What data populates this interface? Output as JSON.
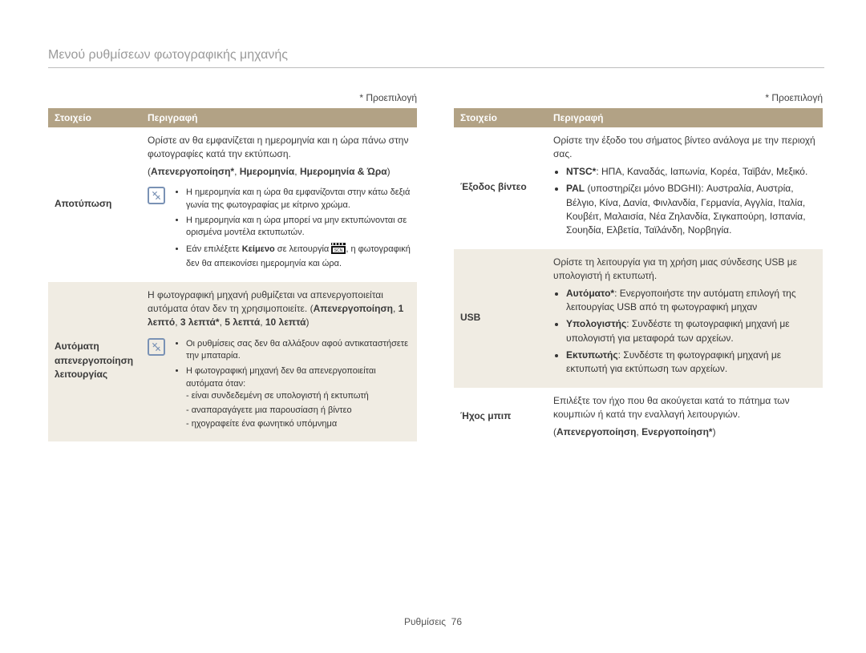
{
  "page_title": "Μενού ρυθμίσεων φωτογραφικής μηχανής",
  "default_label": "* Προεπιλογή",
  "headers": {
    "item": "Στοιχείο",
    "desc": "Περιγραφή"
  },
  "footer": {
    "section": "Ρυθμίσεις",
    "page": "76"
  },
  "colors": {
    "header_bg": "#b2a285",
    "header_fg": "#ffffff",
    "alt_bg": "#f0ece3",
    "rule": "#bdbdbd",
    "title_fg": "#9a9a9a",
    "note_border": "#7a92b5"
  },
  "left": {
    "rows": [
      {
        "item": "Αποτύπωση",
        "desc_intro": "Ορίστε αν θα εμφανίζεται η ημερομηνία και η ώρα πάνω στην φωτογραφίες κατά την εκτύπωση.",
        "options_html": "(<b>Απενεργοποίηση*</b>, <b>Ημερομηνία</b>, <b>Ημερομηνία & Ώρα</b>)",
        "note_bullets": [
          "Η ημερομηνία και η ώρα θα εμφανίζονται στην κάτω δεξιά γωνία της φωτογραφίας με κίτρινο χρώμα.",
          "Η ημερομηνία και η ώρα μπορεί να μην εκτυπώνονται σε ορισμένα μοντέλα εκτυπωτών.",
          "Εάν επιλέξετε <b>Κείμενο</b> σε λειτουργία <ICON>, η φωτογραφική δεν θα απεικονίσει ημερομηνία και ώρα."
        ]
      },
      {
        "item": "Αυτόματη απενεργοποίηση λειτουργίας",
        "desc_intro": "Η φωτογραφική μηχανή ρυθμίζεται να απενεργοποιείται αυτόματα όταν δεν τη χρησιμοποιείτε.",
        "options_html": "(<b>Απενεργοποίηση</b>, <b>1 λεπτό</b>, <b>3 λεπτά*</b>, <b>5 λεπτά</b>, <b>10 λεπτά</b>)",
        "note_bullets": [
          "Οι ρυθμίσεις σας δεν θα αλλάξουν αφού αντικαταστήσετε την μπαταρία.",
          "Η φωτογραφική μηχανή δεν θα απενεργοποιείται αυτόματα όταν:"
        ],
        "note_sublist": [
          "είναι συνδεδεμένη σε υπολογιστή ή εκτυπωτή",
          "αναπαραγάγετε μια παρουσίαση ή βίντεο",
          "ηχογραφείτε ένα φωνητικό υπόμνημα"
        ]
      }
    ]
  },
  "right": {
    "rows": [
      {
        "item": "Έξοδος βίντεο",
        "desc_intro": "Ορίστε την έξοδο του σήματος βίντεο ανάλογα με την περιοχή σας.",
        "bullets_html": [
          "<b>NTSC*</b>: ΗΠΑ, Καναδάς, Ιαπωνία, Κορέα, Ταϊβάν, Μεξικό.",
          "<b>PAL</b> (υποστηρίζει μόνο BDGHI): Αυστραλία, Αυστρία, Βέλγιο, Κίνα, Δανία, Φινλανδία, Γερμανία, Αγγλία, Ιταλία, Κουβέιτ, Μαλαισία, Νέα Ζηλανδία, Σιγκαπούρη, Ισπανία, Σουηδία, Ελβετία, Ταϊλάνδη, Νορβηγία."
        ]
      },
      {
        "item": "USB",
        "desc_intro": "Ορίστε τη λειτουργία για τη χρήση μιας σύνδεσης USB με υπολογιστή ή εκτυπωτή.",
        "bullets_html": [
          "<b>Αυτόματο*</b>: Ενεργοποιήστε την αυτόματη επιλογή της λειτουργίας USB από τη φωτογραφική μηχαν",
          "<b>Υπολογιστής</b>: Συνδέστε τη φωτογραφική μηχανή με υπολογιστή για μεταφορά των αρχείων.",
          "<b>Εκτυπωτής</b>: Συνδέστε τη φωτογραφική μηχανή με εκτυπωτή για εκτύπωση των αρχείων."
        ]
      },
      {
        "item": "Ήχος μπιπ",
        "desc_intro": "Επιλέξτε τον ήχο που θα ακούγεται κατά το πάτημα των κουμπιών ή κατά την εναλλαγή λειτουργιών.",
        "options_html": "(<b>Απενεργοποίηση</b>, <b>Ενεργοποίηση*</b>)"
      }
    ]
  }
}
